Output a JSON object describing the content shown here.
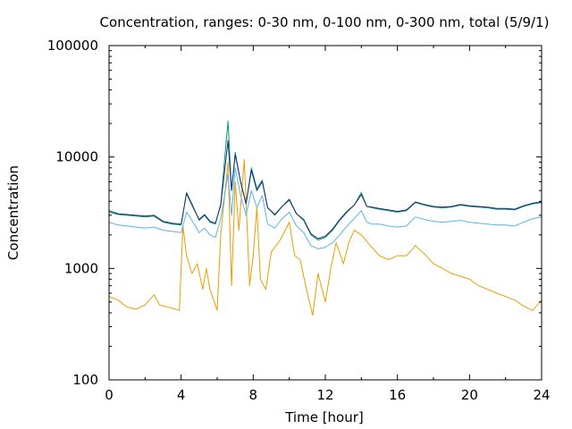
{
  "chart_data": {
    "type": "line",
    "title": "Concentration, ranges: 0-30 nm, 0-100 nm, 0-300 nm, total (5/9/1)",
    "xlabel": "Time [hour]",
    "ylabel": "Concentration",
    "xlim": [
      0,
      24
    ],
    "ylim": [
      100,
      100000
    ],
    "yscale": "log",
    "xticks": [
      0,
      4,
      8,
      12,
      16,
      20,
      24
    ],
    "xtick_labels": [
      "0",
      "4",
      "8",
      "12",
      "16",
      "20",
      "24"
    ],
    "yticks": [
      100,
      1000,
      10000,
      100000
    ],
    "ytick_labels": [
      "100",
      "1000",
      "10000",
      "100000"
    ],
    "grid": false,
    "legend": "none",
    "series": [
      {
        "color": "#e69f00",
        "x": [
          0,
          0.5,
          1,
          1.5,
          2,
          2.5,
          2.8,
          3,
          3.5,
          3.9,
          4.1,
          4.3,
          4.6,
          4.9,
          5.2,
          5.4,
          5.6,
          5.8,
          6.0,
          6.2,
          6.6,
          6.8,
          7.0,
          7.2,
          7.5,
          7.8,
          8.0,
          8.2,
          8.4,
          8.7,
          9.0,
          9.5,
          10.0,
          10.3,
          10.6,
          11.0,
          11.3,
          11.6,
          12.0,
          12.3,
          12.6,
          13.0,
          13.3,
          13.6,
          14.0,
          14.5,
          15.0,
          15.5,
          16.0,
          16.5,
          17.0,
          17.5,
          18.0,
          18.5,
          19.0,
          19.5,
          20.0,
          20.5,
          21.0,
          21.5,
          22.0,
          22.5,
          23.0,
          23.5,
          24.0
        ],
        "y": [
          560,
          520,
          450,
          430,
          470,
          580,
          470,
          460,
          440,
          420,
          2400,
          1300,
          900,
          1100,
          650,
          1000,
          650,
          520,
          420,
          2000,
          9000,
          700,
          6000,
          2200,
          9500,
          700,
          1300,
          3500,
          800,
          650,
          1400,
          1800,
          2600,
          1300,
          1200,
          600,
          380,
          900,
          500,
          1000,
          1700,
          1100,
          1700,
          2200,
          2000,
          1600,
          1300,
          1200,
          1300,
          1300,
          1600,
          1350,
          1100,
          1000,
          900,
          850,
          800,
          700,
          650,
          600,
          560,
          520,
          460,
          420,
          520
        ]
      },
      {
        "color": "#56b4e9",
        "x": [
          0,
          0.5,
          1,
          1.5,
          2,
          2.5,
          3,
          3.5,
          4.0,
          4.3,
          4.6,
          5.0,
          5.3,
          5.6,
          5.9,
          6.2,
          6.6,
          6.8,
          7.0,
          7.3,
          7.6,
          7.9,
          8.2,
          8.5,
          8.8,
          9.2,
          9.6,
          10.0,
          10.4,
          10.8,
          11.2,
          11.6,
          12.0,
          12.4,
          12.8,
          13.2,
          13.6,
          14.0,
          14.3,
          14.6,
          15.0,
          15.5,
          16.0,
          16.5,
          17.0,
          17.5,
          18.0,
          18.5,
          19.0,
          19.5,
          20.0,
          20.5,
          21.0,
          21.5,
          22.0,
          22.5,
          23.0,
          23.5,
          24.0
        ],
        "y": [
          2600,
          2450,
          2400,
          2350,
          2300,
          2350,
          2200,
          2150,
          2100,
          3200,
          2700,
          2100,
          2300,
          2000,
          1900,
          2800,
          7000,
          3000,
          8000,
          4500,
          3000,
          5000,
          3500,
          4500,
          2500,
          2300,
          2800,
          3200,
          2400,
          2100,
          1600,
          1500,
          1550,
          1700,
          2000,
          2400,
          2800,
          3300,
          2600,
          2500,
          2500,
          2400,
          2350,
          2400,
          2900,
          2750,
          2650,
          2600,
          2650,
          2700,
          2600,
          2550,
          2500,
          2450,
          2450,
          2400,
          2600,
          2800,
          2900
        ]
      },
      {
        "color": "#009e73",
        "x": [
          0,
          0.5,
          1,
          1.5,
          2,
          2.5,
          3,
          3.5,
          4.0,
          4.3,
          4.6,
          5.0,
          5.3,
          5.6,
          5.9,
          6.2,
          6.6,
          6.8,
          7.0,
          7.3,
          7.6,
          7.9,
          8.2,
          8.5,
          8.8,
          9.2,
          9.6,
          10.0,
          10.4,
          10.8,
          11.2,
          11.6,
          12.0,
          12.4,
          12.8,
          13.2,
          13.6,
          14.0,
          14.3,
          14.6,
          15.0,
          15.5,
          16.0,
          16.5,
          17.0,
          17.5,
          18.0,
          18.5,
          19.0,
          19.5,
          20.0,
          20.5,
          21.0,
          21.5,
          22.0,
          22.5,
          23.0,
          23.5,
          24.0
        ],
        "y": [
          3200,
          3050,
          3000,
          2950,
          2900,
          2950,
          2600,
          2500,
          2450,
          4800,
          3800,
          2700,
          3000,
          2600,
          2500,
          3800,
          21000,
          5000,
          11000,
          6000,
          3800,
          8000,
          5200,
          6200,
          3500,
          3000,
          3600,
          4200,
          3100,
          2700,
          2000,
          1800,
          1900,
          2200,
          2700,
          3200,
          3700,
          4800,
          3600,
          3500,
          3400,
          3300,
          3200,
          3300,
          3900,
          3700,
          3550,
          3500,
          3550,
          3700,
          3600,
          3550,
          3500,
          3400,
          3400,
          3350,
          3600,
          3800,
          3900
        ]
      },
      {
        "color": "#1f2a7a",
        "x": [
          0,
          0.5,
          1,
          1.5,
          2,
          2.5,
          3,
          3.5,
          4.0,
          4.3,
          4.6,
          5.0,
          5.3,
          5.6,
          5.9,
          6.2,
          6.6,
          6.8,
          7.0,
          7.3,
          7.6,
          7.9,
          8.2,
          8.5,
          8.8,
          9.2,
          9.6,
          10.0,
          10.4,
          10.8,
          11.2,
          11.6,
          12.0,
          12.4,
          12.8,
          13.2,
          13.6,
          14.0,
          14.3,
          14.6,
          15.0,
          15.5,
          16.0,
          16.5,
          17.0,
          17.5,
          18.0,
          18.5,
          19.0,
          19.5,
          20.0,
          20.5,
          21.0,
          21.5,
          22.0,
          22.5,
          23.0,
          23.5,
          24.0
        ],
        "y": [
          3300,
          3100,
          3050,
          3000,
          2950,
          3000,
          2650,
          2550,
          2500,
          4700,
          3700,
          2750,
          3050,
          2650,
          2550,
          3700,
          14000,
          5000,
          10500,
          6000,
          3800,
          7600,
          5000,
          6000,
          3500,
          3050,
          3600,
          4100,
          3100,
          2750,
          2050,
          1850,
          1950,
          2250,
          2750,
          3250,
          3700,
          4600,
          3600,
          3550,
          3450,
          3350,
          3250,
          3350,
          3950,
          3750,
          3600,
          3550,
          3600,
          3750,
          3650,
          3600,
          3550,
          3450,
          3450,
          3400,
          3650,
          3850,
          3950
        ]
      }
    ]
  }
}
